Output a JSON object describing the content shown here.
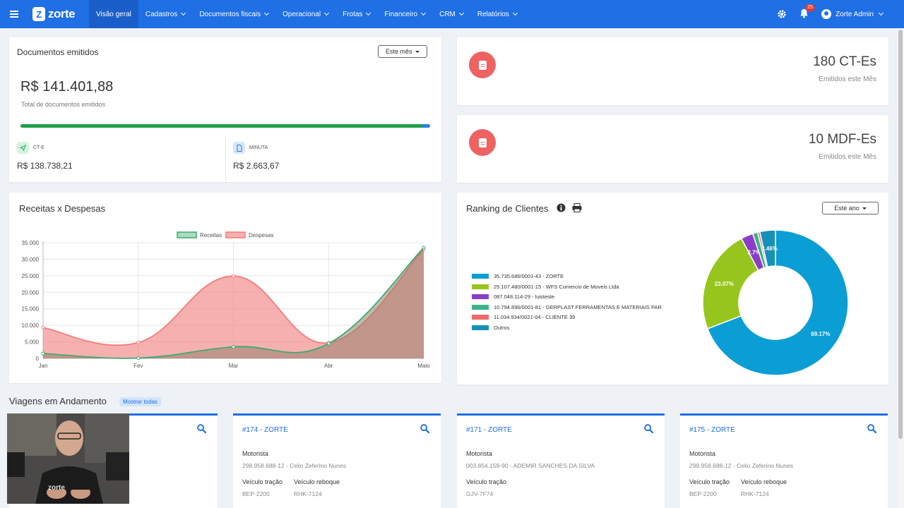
{
  "nav": {
    "brand": "zorte",
    "items": [
      {
        "label": "Visão geral",
        "active": true,
        "dropdown": false
      },
      {
        "label": "Cadastros",
        "dropdown": true
      },
      {
        "label": "Documentos fiscais",
        "dropdown": true
      },
      {
        "label": "Operacional",
        "dropdown": true
      },
      {
        "label": "Frotas",
        "dropdown": true
      },
      {
        "label": "Financeiro",
        "dropdown": true
      },
      {
        "label": "CRM",
        "dropdown": true
      },
      {
        "label": "Relatórios",
        "dropdown": true
      }
    ],
    "notifications_count": "25",
    "user_name": "Zorte Admin"
  },
  "docs": {
    "title": "Documentos emitidos",
    "period_button": "Este mês",
    "total": "R$ 141.401,88",
    "total_label": "Total de documentos emitidos",
    "progress_fraction": 0.981,
    "cte_label": "CT-E",
    "cte_value": "R$ 138.738,21",
    "minuta_label": "MINUTA",
    "minuta_value": "R$ 2.663,67"
  },
  "kpi": {
    "cte_count": "180 CT-Es",
    "cte_sub": "Emitidos este Mês",
    "mdfe_count": "10 MDF-Es",
    "mdfe_sub": "Emitidos este Mês"
  },
  "receitas": {
    "title": "Receitas x Despesas"
  },
  "ranking": {
    "title": "Ranking de Clientes",
    "period_button": "Este ano"
  },
  "chart_data": [
    {
      "type": "area",
      "title": "Receitas x Despesas",
      "categories": [
        "Jan",
        "Fev",
        "Mar",
        "Abr",
        "Maio"
      ],
      "ylim": [
        0,
        35000
      ],
      "yticks": [
        "0",
        "5.000",
        "10.000",
        "15.000",
        "20.000",
        "25.000",
        "30.000",
        "35.000"
      ],
      "yticks_values": [
        0,
        5000,
        10000,
        15000,
        20000,
        25000,
        30000,
        35000
      ],
      "legend_position": "top-center",
      "grid": true,
      "series": [
        {
          "name": "Receitas",
          "values": [
            1500,
            100,
            3500,
            4500,
            33500
          ],
          "color": "#3dab6f"
        },
        {
          "name": "Despesas",
          "values": [
            9300,
            4800,
            24900,
            4700,
            33000
          ],
          "color": "#f27c7c"
        }
      ]
    },
    {
      "type": "pie",
      "title": "Ranking de Clientes",
      "legend_position": "left",
      "labels": [
        "35.735.686/0001-43 - ZORTE",
        "25.107.480/0001-15 - WFS Comercio de Moveis Ltda",
        "087.048.114-29 - luisteste",
        "10.794.896/0001-81 - GERPLAST FERRAMENTAS E MATERIAIS PAR",
        "11.034.934/0021-04 - CLIENTE 39",
        "Outros"
      ],
      "values": [
        69.17,
        23.07,
        2.7,
        1.1,
        0.5,
        3.46
      ],
      "value_labels": [
        "69.17%",
        "23.07%",
        "2.7%",
        "",
        "",
        "3.46%"
      ],
      "colors": [
        "#0b9ed4",
        "#97c51d",
        "#8a3ec6",
        "#3ab38a",
        "#ef6b6b",
        "#1591b8"
      ]
    }
  ],
  "trips": {
    "section_title": "Viagens em Andamento",
    "show_all": "Mostrar todas",
    "cards": [
      {
        "id": "",
        "motorista_label": "",
        "motorista": "",
        "tracao_label": "",
        "tracao": "",
        "reboque_label": "",
        "reboque": ""
      },
      {
        "id": "#174 - ZORTE",
        "motorista_label": "Motorista",
        "motorista": "298.958.688-12 - Celio Zeferino Nunes",
        "tracao_label": "Veículo tração",
        "tracao": "BEP-2200",
        "reboque_label": "Veículo reboque",
        "reboque": "RHK-7124"
      },
      {
        "id": "#171 - ZORTE",
        "motorista_label": "Motorista",
        "motorista": "003.854.159-90 - ADEMIR SANCHES DA SILVA",
        "tracao_label": "Veículo tração",
        "tracao": "GJV-7F74",
        "reboque_label": "",
        "reboque": ""
      },
      {
        "id": "#175 - ZORTE",
        "motorista_label": "Motorista",
        "motorista": "298.958.688-12 - Celio Zeferino Nunes",
        "tracao_label": "Veículo tração",
        "tracao": "BEP-2200",
        "reboque_label": "Veículo reboque",
        "reboque": "RHK-7124"
      }
    ]
  },
  "webcam_logo_text": "zorte"
}
